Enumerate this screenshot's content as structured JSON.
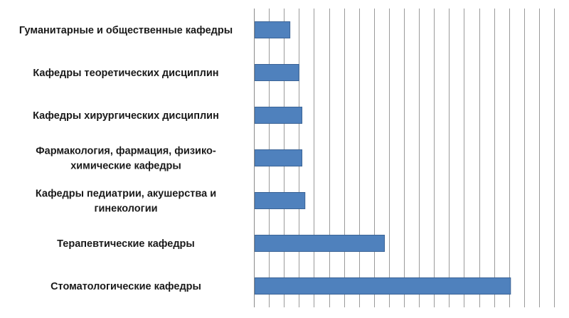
{
  "chart_data": {
    "type": "bar",
    "orientation": "horizontal",
    "categories": [
      [
        "Гуманитарные и общественные кафедры"
      ],
      [
        "Кафедры теоретических дисциплин"
      ],
      [
        "Кафедры хирургических дисциплин"
      ],
      [
        "Фармакология, фармация, физико-",
        "химические кафедры"
      ],
      [
        "Кафедры педиатрии, акушерства и",
        "гинекологии"
      ],
      [
        "Терапевтические кафедры"
      ],
      [
        "Стоматологические кафедры"
      ]
    ],
    "values": [
      2.4,
      3.0,
      3.2,
      3.2,
      3.4,
      8.7,
      17.1
    ],
    "xlim": [
      0,
      20
    ],
    "x_grid_step": 1,
    "grid": true,
    "legend": "none",
    "bar_color": "#4f81bd",
    "bar_edge_color": "#3a6396"
  }
}
